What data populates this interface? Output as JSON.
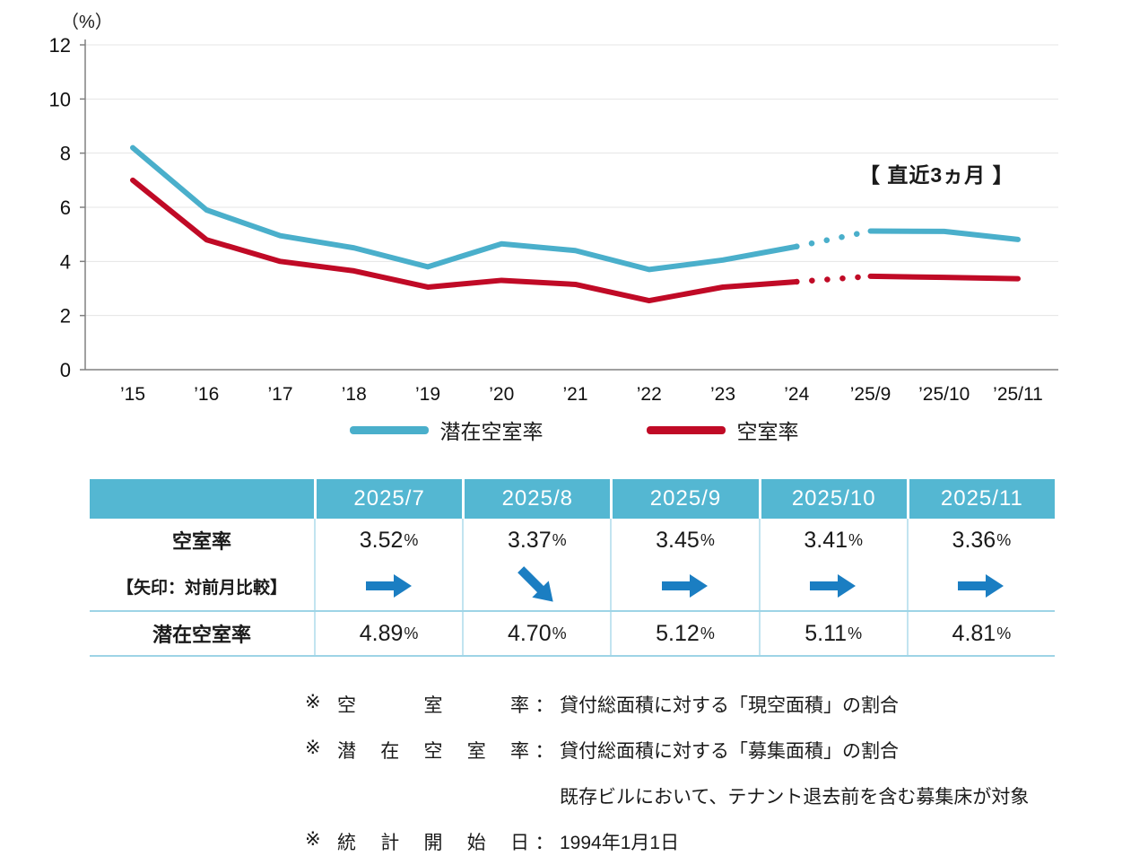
{
  "chart_data": {
    "type": "line",
    "title": "",
    "unit_label": "（%）",
    "annotation": "【 直近3ヵ月 】",
    "categories": [
      "’15",
      "’16",
      "’17",
      "’18",
      "’19",
      "’20",
      "’21",
      "’22",
      "’23",
      "’24",
      "’25/9",
      "’25/10",
      "’25/11"
    ],
    "ylim": [
      0,
      12
    ],
    "yticks": [
      0,
      2,
      4,
      6,
      8,
      10,
      12
    ],
    "grid": true,
    "legend_position": "bottom",
    "dotted_segment_between": [
      9,
      10
    ],
    "series": [
      {
        "name": "潜在空室率",
        "color": "#4AAFCB",
        "values": [
          8.2,
          5.9,
          4.95,
          4.5,
          3.8,
          4.65,
          4.4,
          3.7,
          4.05,
          4.55,
          5.12,
          5.11,
          4.81
        ]
      },
      {
        "name": "空室率",
        "color": "#C00A26",
        "values": [
          7.0,
          4.8,
          4.0,
          3.65,
          3.05,
          3.3,
          3.15,
          2.55,
          3.05,
          3.25,
          3.45,
          3.41,
          3.36
        ]
      }
    ]
  },
  "table": {
    "unit": "%",
    "arrow_color": "#1B7EC2",
    "header": [
      "",
      "2025/7",
      "2025/8",
      "2025/9",
      "2025/10",
      "2025/11"
    ],
    "rows": {
      "vacancy": {
        "label": "空室率",
        "sublabel": "【矢印：対前月比較】",
        "values": [
          "3.52",
          "3.37",
          "3.45",
          "3.41",
          "3.36"
        ],
        "arrows": [
          "right",
          "down-right",
          "right",
          "right",
          "right"
        ]
      },
      "potential": {
        "label": "潜在空室率",
        "values": [
          "4.89",
          "4.70",
          "5.12",
          "5.11",
          "4.81"
        ]
      }
    }
  },
  "footnotes": [
    {
      "marker": "※",
      "term": "空室率",
      "colon": "：",
      "text": "貸付総面積に対する「現空面積」の割合"
    },
    {
      "marker": "※",
      "term": "潜在空室率",
      "colon": "：",
      "text": "貸付総面積に対する「募集面積」の割合",
      "continuation": "既存ビルにおいて、テナント退去前を含む募集床が対象"
    },
    {
      "marker": "※",
      "term": "統計開始日",
      "colon": "：",
      "text": "1994年1月1日"
    }
  ]
}
